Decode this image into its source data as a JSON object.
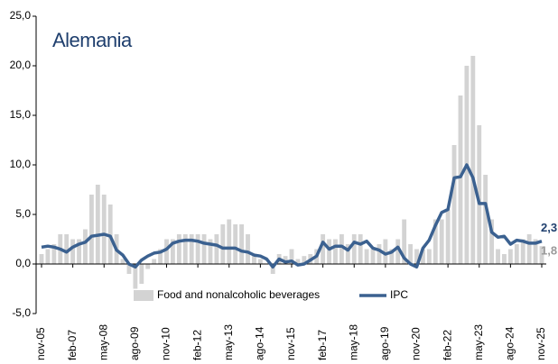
{
  "chart_data": {
    "type": "bar-line",
    "title": "Alemania",
    "categories": [
      "nov-05",
      null,
      null,
      null,
      null,
      "feb-07",
      null,
      null,
      null,
      null,
      "may-08",
      null,
      null,
      null,
      null,
      "ago-09",
      null,
      null,
      null,
      null,
      "nov-10",
      null,
      null,
      null,
      null,
      "feb-12",
      null,
      null,
      null,
      null,
      "may-13",
      null,
      null,
      null,
      null,
      "ago-14",
      null,
      null,
      null,
      null,
      "nov-15",
      null,
      null,
      null,
      null,
      "feb-17",
      null,
      null,
      null,
      null,
      "may-18",
      null,
      null,
      null,
      null,
      "ago-19",
      null,
      null,
      null,
      null,
      "nov-20",
      null,
      null,
      null,
      null,
      "feb-22",
      null,
      null,
      null,
      null,
      "may-23",
      null,
      null,
      null,
      null,
      "ago-24",
      null,
      null,
      null,
      null,
      "nov-25"
    ],
    "series": [
      {
        "name": "Food and nonalcoholic beverages",
        "kind": "bar",
        "color": "#d3d3d3",
        "end_label": "1,8",
        "values": [
          1.0,
          1.5,
          2.0,
          3.0,
          3.0,
          2.5,
          2.5,
          3.5,
          7.0,
          8.0,
          7.0,
          6.0,
          3.0,
          0.5,
          -1.0,
          -2.5,
          -2.0,
          -0.5,
          0.5,
          1.5,
          2.5,
          2.5,
          3.0,
          3.0,
          3.0,
          3.0,
          3.0,
          2.5,
          3.0,
          4.0,
          4.5,
          4.0,
          4.0,
          3.0,
          1.0,
          0.5,
          0.0,
          -1.0,
          1.0,
          0.8,
          1.5,
          0.5,
          0.8,
          1.0,
          1.5,
          3.0,
          2.5,
          2.5,
          3.0,
          2.0,
          3.0,
          3.0,
          1.5,
          1.5,
          2.0,
          2.5,
          1.5,
          2.5,
          4.5,
          2.0,
          1.5,
          1.5,
          1.5,
          4.5,
          4.5,
          5.5,
          12.0,
          17.0,
          20.0,
          21.0,
          14.0,
          9.0,
          4.5,
          1.5,
          1.0,
          1.5,
          2.0,
          2.5,
          3.0,
          2.5,
          1.8
        ]
      },
      {
        "name": "IPC",
        "kind": "line",
        "color": "#3b6190",
        "end_label": "2,3",
        "values": [
          1.7,
          1.8,
          1.7,
          1.5,
          1.2,
          1.7,
          2.0,
          2.2,
          2.8,
          2.9,
          3.0,
          2.8,
          1.4,
          0.9,
          0.0,
          -0.3,
          0.4,
          0.8,
          1.1,
          1.2,
          1.5,
          2.1,
          2.3,
          2.4,
          2.4,
          2.3,
          2.1,
          2.0,
          1.9,
          1.6,
          1.6,
          1.6,
          1.3,
          1.2,
          0.9,
          0.8,
          0.5,
          -0.3,
          0.5,
          0.2,
          0.3,
          -0.1,
          0.0,
          0.4,
          0.8,
          2.2,
          1.5,
          1.8,
          1.8,
          1.4,
          2.2,
          2.0,
          2.3,
          1.6,
          1.4,
          1.0,
          1.2,
          1.7,
          0.6,
          0.0,
          -0.3,
          1.6,
          2.4,
          3.9,
          5.2,
          5.5,
          8.7,
          8.8,
          10.0,
          8.7,
          6.1,
          6.1,
          3.2,
          2.7,
          2.8,
          2.0,
          2.4,
          2.3,
          2.1,
          2.1,
          2.3
        ]
      }
    ],
    "ylim": [
      -5,
      25
    ],
    "yticks": [
      {
        "value": -5,
        "label": "-5,0"
      },
      {
        "value": 0,
        "label": "0,0"
      },
      {
        "value": 5,
        "label": "5,0"
      },
      {
        "value": 10,
        "label": "10,0"
      },
      {
        "value": 15,
        "label": "15,0"
      },
      {
        "value": 20,
        "label": "20,0"
      },
      {
        "value": 25,
        "label": "25,0"
      }
    ],
    "grid": false
  }
}
